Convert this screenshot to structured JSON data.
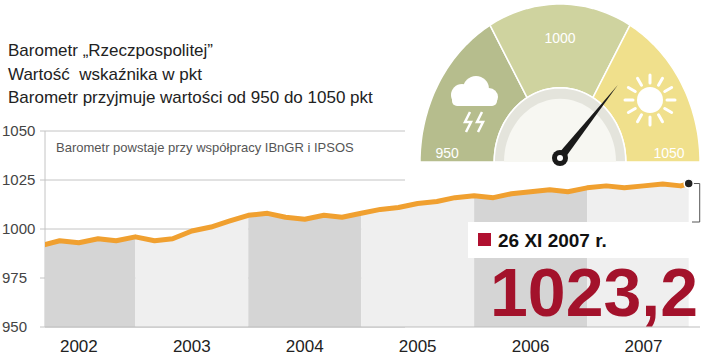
{
  "chart_data": {
    "type": "line",
    "title": "Barometr „Rzeczpospolitej”",
    "subtitle": [
      "Wartość  wskaźnika w pkt",
      "Barometr przyjmuje wartości od 950 do 1050 pkt"
    ],
    "note": "Barometr powstaje przy współpracy IBnGR i IPSOS",
    "x": [
      2002.2,
      2002.33,
      2002.5,
      2002.67,
      2002.83,
      2003.0,
      2003.17,
      2003.33,
      2003.5,
      2003.67,
      2003.83,
      2004.0,
      2004.17,
      2004.33,
      2004.5,
      2004.67,
      2004.83,
      2005.0,
      2005.17,
      2005.33,
      2005.5,
      2005.67,
      2005.83,
      2006.0,
      2006.17,
      2006.33,
      2006.5,
      2006.67,
      2006.83,
      2007.0,
      2007.17,
      2007.33,
      2007.5,
      2007.67,
      2007.83,
      2007.9
    ],
    "values": [
      992,
      994,
      993,
      995,
      994,
      996,
      994,
      995,
      999,
      1001,
      1004,
      1007,
      1008,
      1006,
      1005,
      1007,
      1006,
      1008,
      1010,
      1011,
      1013,
      1014,
      1016,
      1017,
      1016,
      1018,
      1019,
      1020,
      1019,
      1021,
      1022,
      1021,
      1022,
      1023,
      1022,
      1023.2
    ],
    "color": "#f0a030",
    "xlim": [
      2002.2,
      2008
    ],
    "xticks": [
      {
        "value": 2002.5,
        "label": "2002"
      },
      {
        "value": 2003.5,
        "label": "2003"
      },
      {
        "value": 2004.5,
        "label": "2004"
      },
      {
        "value": 2005.5,
        "label": "2005"
      },
      {
        "value": 2006.5,
        "label": "2006"
      },
      {
        "value": 2007.5,
        "label": "2007"
      }
    ],
    "ylim": [
      950,
      1050
    ],
    "yticks": [
      950,
      975,
      1000,
      1025,
      1050
    ],
    "grid": true,
    "gauge": {
      "range": [
        950,
        1050
      ],
      "ticks": [
        950,
        1000,
        1050
      ],
      "value": 1023.2
    },
    "annotation": {
      "text": "26 XI 2007 r.",
      "value": 1023.2,
      "value_label": "1023,2"
    }
  }
}
